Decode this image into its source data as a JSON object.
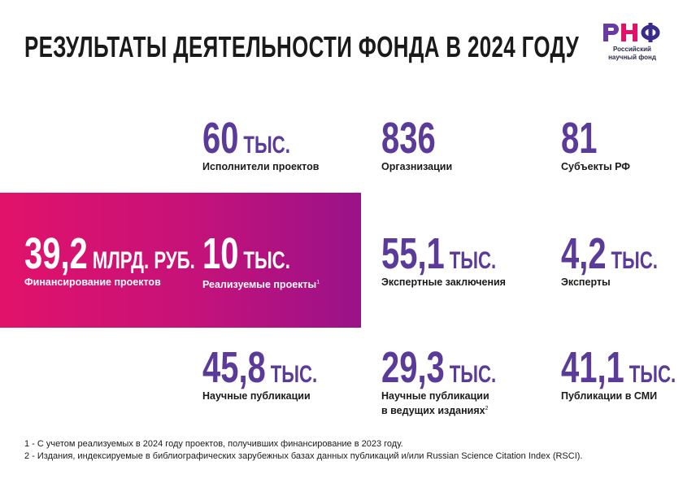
{
  "title": "РЕЗУЛЬТАТЫ ДЕЯТЕЛЬНОСТИ ФОНДА В 2024 ГОДУ",
  "logo": {
    "mark": "РНФ",
    "line1": "Российский",
    "line2": "научный фонд",
    "colors": [
      "#6a3aa1",
      "#e0126a",
      "#3a2c8c"
    ]
  },
  "colors": {
    "accent": "#5b3b9a",
    "band_start": "#e2126a",
    "band_end": "#9a1289"
  },
  "stats": {
    "executors": {
      "value": "60",
      "unit": "ТЫС.",
      "label": "Исполнители проектов"
    },
    "organizations": {
      "value": "836",
      "unit": "",
      "label": "Оргазнизации"
    },
    "subjects": {
      "value": "81",
      "unit": "",
      "label": "Субъекты РФ"
    },
    "financing": {
      "value": "39,2",
      "unit": "МЛРД. РУБ.",
      "label": "Финансирование проектов"
    },
    "projects": {
      "value": "10",
      "unit": "ТЫС.",
      "label": "Реализуемые проекты",
      "note": "1"
    },
    "expert_reviews": {
      "value": "55,1",
      "unit": "ТЫС.",
      "label": "Экспертные заключения"
    },
    "experts": {
      "value": "4,2",
      "unit": "ТЫС.",
      "label": "Эксперты"
    },
    "publications": {
      "value": "45,8",
      "unit": "ТЫС.",
      "label": "Научные публикации"
    },
    "leading_publications": {
      "value": "29,3",
      "unit": "ТЫС.",
      "label_line1": "Научные публикации",
      "label_line2": "в ведущих изданиях",
      "note": "2"
    },
    "media": {
      "value": "41,1",
      "unit": "ТЫС.",
      "label": "Публикации в СМИ"
    }
  },
  "footnotes": [
    "1 - С учетом реализуемых в 2024 году проектов, получивших финансирование в 2023 году.",
    "2 - Издания, индексируемые в библиографических зарубежных базах данных публикаций и/или Russian Science Citation Index (RSCI)."
  ]
}
